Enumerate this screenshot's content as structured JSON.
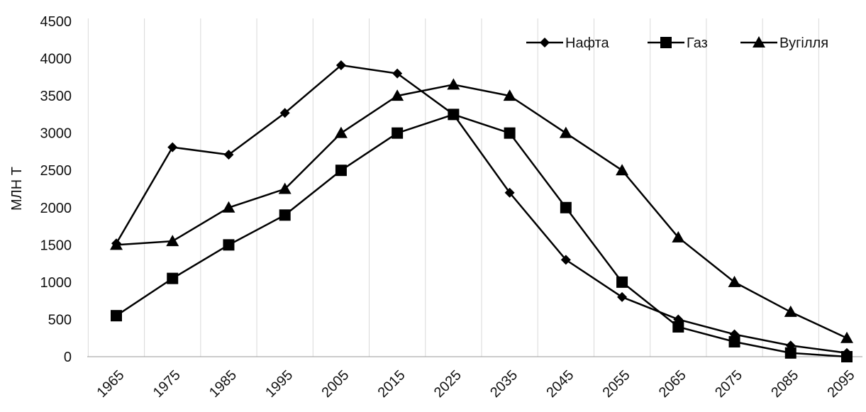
{
  "chart_data": {
    "type": "line",
    "ylabel": "МЛН Т",
    "xlabel": "",
    "ylim": [
      0,
      4500
    ],
    "yticks": [
      0,
      500,
      1000,
      1500,
      2000,
      2500,
      3000,
      3500,
      4000,
      4500
    ],
    "xtick_labels": [
      "1965",
      "1975",
      "1985",
      "1995",
      "2005",
      "2015",
      "2025",
      "2035",
      "2045",
      "2055",
      "2065",
      "2075",
      "2085",
      "2095"
    ],
    "x": [
      1965,
      1975,
      1985,
      1995,
      2005,
      2015,
      2025,
      2035,
      2045,
      2055,
      2065,
      2075,
      2085,
      2095
    ],
    "grid": "vertical",
    "legend_position": "top-right",
    "line_color": "#000000",
    "series": [
      {
        "name": "Нафта",
        "marker": "diamond",
        "values": [
          1520,
          2810,
          2710,
          3270,
          3910,
          3800,
          3250,
          2200,
          1300,
          800,
          500,
          300,
          150,
          50
        ]
      },
      {
        "name": "Газ",
        "marker": "square",
        "values": [
          550,
          1050,
          1500,
          1900,
          2500,
          3000,
          3250,
          3000,
          2000,
          1000,
          400,
          200,
          50,
          0
        ]
      },
      {
        "name": "Вугілля",
        "marker": "triangle",
        "values": [
          1500,
          1550,
          2000,
          2250,
          3000,
          3500,
          3650,
          3500,
          3000,
          2500,
          1600,
          1000,
          600,
          250
        ]
      }
    ]
  }
}
